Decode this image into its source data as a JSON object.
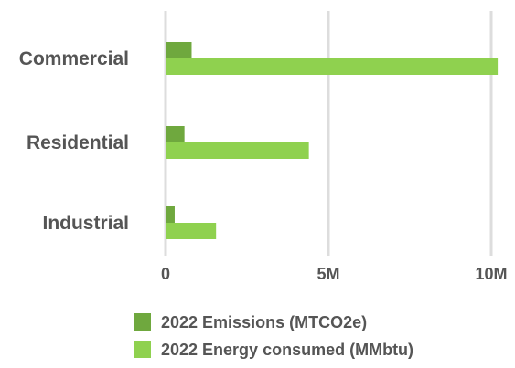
{
  "chart_data": {
    "type": "bar",
    "orientation": "horizontal",
    "categories": [
      "Commercial",
      "Residential",
      "Industrial"
    ],
    "series": [
      {
        "name": "2022 Emissions (MTCO2e)",
        "color": "#6fa83e",
        "values": [
          800000,
          580000,
          280000
        ]
      },
      {
        "name": "2022 Energy consumed (MMbtu)",
        "color": "#8fd14f",
        "values": [
          10200000,
          4400000,
          1550000
        ]
      }
    ],
    "x_ticks": [
      {
        "value": 0,
        "label": "0"
      },
      {
        "value": 5000000,
        "label": "5M"
      },
      {
        "value": 10000000,
        "label": "10M"
      }
    ],
    "xlim": [
      0,
      10000000
    ],
    "grid": true,
    "legend_position": "bottom"
  }
}
